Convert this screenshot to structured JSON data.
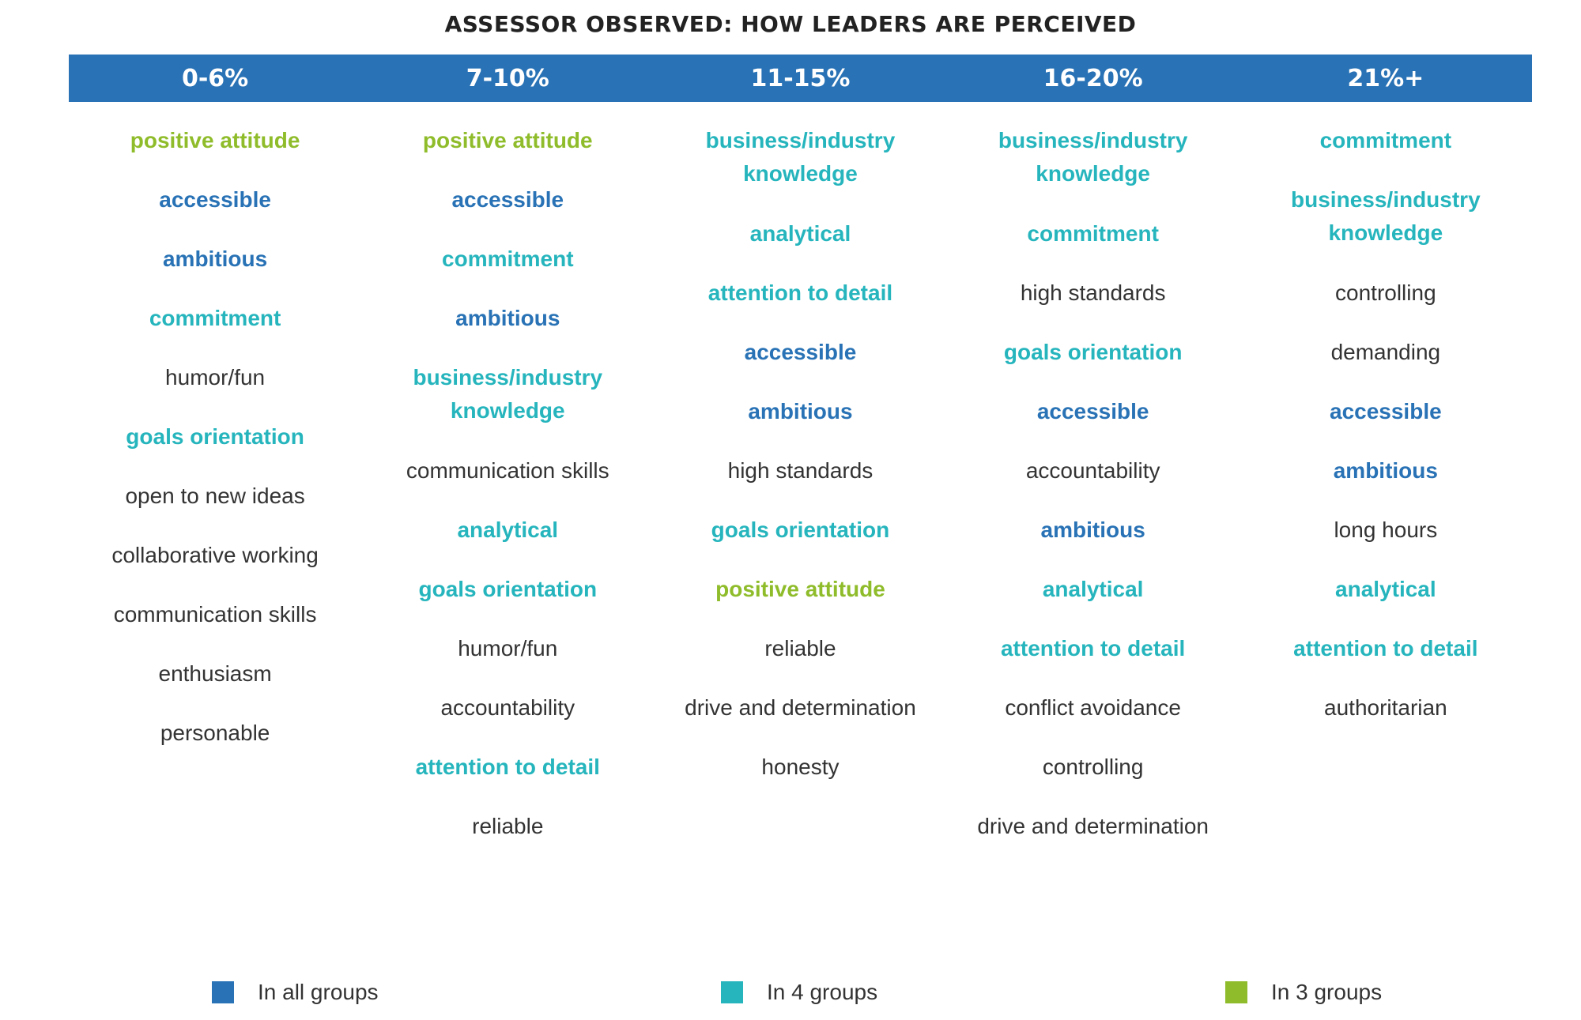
{
  "title": "ASSESSOR OBSERVED: HOW LEADERS ARE PERCEIVED",
  "colors": {
    "all": "#2872b5",
    "four": "#26b5bd",
    "three": "#8fbc2a",
    "none": "#333333",
    "header": "#2872b5"
  },
  "columns": [
    {
      "header": "0-6%",
      "items": [
        {
          "text": "positive attitude",
          "group": "three"
        },
        {
          "text": "accessible",
          "group": "all"
        },
        {
          "text": "ambitious",
          "group": "all"
        },
        {
          "text": "commitment",
          "group": "four"
        },
        {
          "text": "humor/fun",
          "group": "none"
        },
        {
          "text": "goals orientation",
          "group": "four"
        },
        {
          "text": "open to new ideas",
          "group": "none"
        },
        {
          "text": "collaborative working",
          "group": "none"
        },
        {
          "text": "communication skills",
          "group": "none"
        },
        {
          "text": "enthusiasm",
          "group": "none"
        },
        {
          "text": "personable",
          "group": "none"
        }
      ]
    },
    {
      "header": "7-10%",
      "items": [
        {
          "text": "positive attitude",
          "group": "three"
        },
        {
          "text": "accessible",
          "group": "all"
        },
        {
          "text": "commitment",
          "group": "four"
        },
        {
          "text": "ambitious",
          "group": "all"
        },
        {
          "text": "business/industry knowledge",
          "group": "four"
        },
        {
          "text": "communication skills",
          "group": "none"
        },
        {
          "text": "analytical",
          "group": "four"
        },
        {
          "text": "goals orientation",
          "group": "four"
        },
        {
          "text": "humor/fun",
          "group": "none"
        },
        {
          "text": "accountability",
          "group": "none"
        },
        {
          "text": "attention to detail",
          "group": "four"
        },
        {
          "text": "reliable",
          "group": "none"
        }
      ]
    },
    {
      "header": "11-15%",
      "items": [
        {
          "text": "business/industry knowledge",
          "group": "four"
        },
        {
          "text": "analytical",
          "group": "four"
        },
        {
          "text": "attention to detail",
          "group": "four"
        },
        {
          "text": "accessible",
          "group": "all"
        },
        {
          "text": "ambitious",
          "group": "all"
        },
        {
          "text": "high standards",
          "group": "none"
        },
        {
          "text": "goals orientation",
          "group": "four"
        },
        {
          "text": "positive attitude",
          "group": "three"
        },
        {
          "text": "reliable",
          "group": "none"
        },
        {
          "text": "drive and determination",
          "group": "none"
        },
        {
          "text": "honesty",
          "group": "none"
        }
      ]
    },
    {
      "header": "16-20%",
      "items": [
        {
          "text": "business/industry knowledge",
          "group": "four"
        },
        {
          "text": "commitment",
          "group": "four"
        },
        {
          "text": "high standards",
          "group": "none"
        },
        {
          "text": "goals orientation",
          "group": "four"
        },
        {
          "text": "accessible",
          "group": "all"
        },
        {
          "text": "accountability",
          "group": "none"
        },
        {
          "text": "ambitious",
          "group": "all"
        },
        {
          "text": "analytical",
          "group": "four"
        },
        {
          "text": "attention to detail",
          "group": "four"
        },
        {
          "text": "conflict avoidance",
          "group": "none"
        },
        {
          "text": "controlling",
          "group": "none"
        },
        {
          "text": "drive and determination",
          "group": "none"
        }
      ]
    },
    {
      "header": "21%+",
      "items": [
        {
          "text": "commitment",
          "group": "four"
        },
        {
          "text": "business/industry knowledge",
          "group": "four"
        },
        {
          "text": "controlling",
          "group": "none"
        },
        {
          "text": "demanding",
          "group": "none"
        },
        {
          "text": "accessible",
          "group": "all"
        },
        {
          "text": "ambitious",
          "group": "all"
        },
        {
          "text": "long hours",
          "group": "none"
        },
        {
          "text": "analytical",
          "group": "four"
        },
        {
          "text": "attention to detail",
          "group": "four"
        },
        {
          "text": "authoritarian",
          "group": "none"
        }
      ]
    }
  ],
  "legend": [
    {
      "label": "In all groups",
      "group": "all"
    },
    {
      "label": "In 4 groups",
      "group": "four"
    },
    {
      "label": "In 3 groups",
      "group": "three"
    }
  ]
}
